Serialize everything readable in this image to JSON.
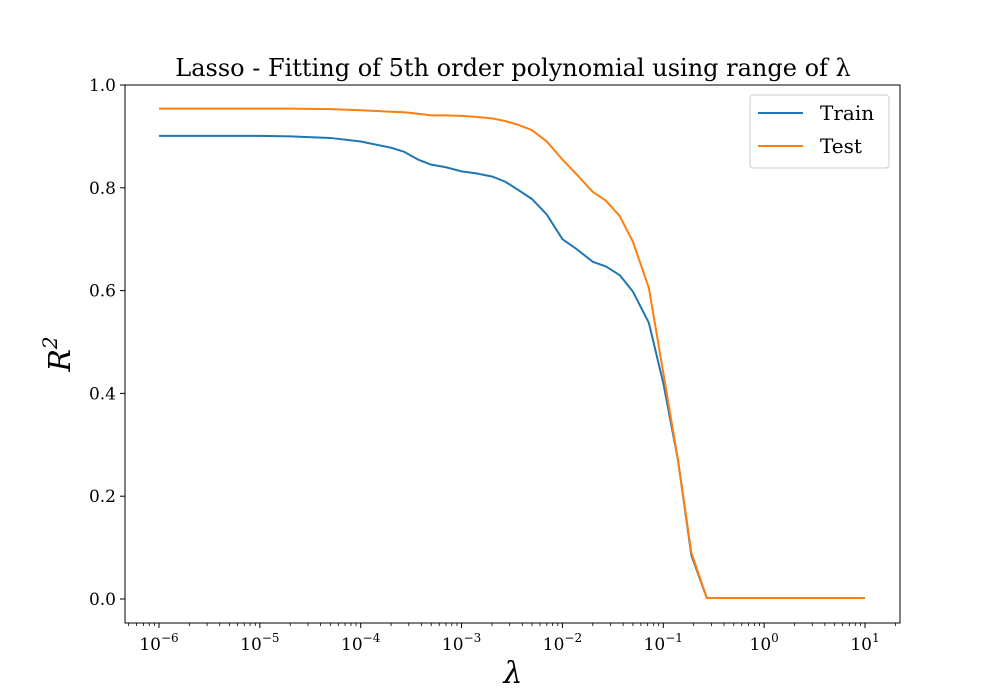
{
  "chart_data": {
    "type": "line",
    "title": "Lasso - Fitting of 5th order polynomial using range of λ",
    "xlabel": "λ",
    "ylabel_base": "R",
    "ylabel_sup": "2",
    "x_scale": "log",
    "xlim": [
      1e-06,
      10
    ],
    "ylim": [
      0.0,
      1.0
    ],
    "grid": false,
    "legend_placement": "top-right",
    "x_ticks": [
      {
        "value": 1e-06,
        "base": "10",
        "exp": "−6"
      },
      {
        "value": 1e-05,
        "base": "10",
        "exp": "−5"
      },
      {
        "value": 0.0001,
        "base": "10",
        "exp": "−4"
      },
      {
        "value": 0.001,
        "base": "10",
        "exp": "−3"
      },
      {
        "value": 0.01,
        "base": "10",
        "exp": "−2"
      },
      {
        "value": 0.1,
        "base": "10",
        "exp": "−1"
      },
      {
        "value": 1,
        "base": "10",
        "exp": "0"
      },
      {
        "value": 10,
        "base": "10",
        "exp": "1"
      }
    ],
    "y_ticks": [
      "0.0",
      "0.2",
      "0.4",
      "0.6",
      "0.8",
      "1.0"
    ],
    "series": [
      {
        "name": "Train",
        "color": "#1f77b4",
        "x": [
          1e-06,
          2e-06,
          5e-06,
          1e-05,
          2e-05,
          5e-05,
          0.0001,
          0.0002,
          0.00027,
          0.00037,
          0.0005,
          0.0007,
          0.001,
          0.0014,
          0.002,
          0.0027,
          0.0037,
          0.005,
          0.007,
          0.01,
          0.014,
          0.02,
          0.027,
          0.037,
          0.05,
          0.072,
          0.1,
          0.14,
          0.19,
          0.27,
          0.5,
          1,
          2,
          5,
          10
        ],
        "y": [
          0.901,
          0.901,
          0.901,
          0.901,
          0.9,
          0.897,
          0.89,
          0.878,
          0.87,
          0.855,
          0.845,
          0.84,
          0.832,
          0.828,
          0.822,
          0.812,
          0.795,
          0.778,
          0.748,
          0.7,
          0.68,
          0.656,
          0.647,
          0.63,
          0.598,
          0.537,
          0.42,
          0.27,
          0.085,
          0.002,
          0.002,
          0.002,
          0.002,
          0.002,
          0.002
        ]
      },
      {
        "name": "Test",
        "color": "#ff7f0e",
        "x": [
          1e-06,
          2e-06,
          5e-06,
          1e-05,
          2e-05,
          5e-05,
          0.0001,
          0.0002,
          0.00027,
          0.00037,
          0.0005,
          0.0007,
          0.001,
          0.0014,
          0.002,
          0.0027,
          0.0037,
          0.005,
          0.007,
          0.01,
          0.014,
          0.02,
          0.027,
          0.037,
          0.05,
          0.072,
          0.1,
          0.14,
          0.19,
          0.27,
          0.5,
          1,
          2,
          5,
          10
        ],
        "y": [
          0.954,
          0.954,
          0.954,
          0.954,
          0.954,
          0.953,
          0.951,
          0.948,
          0.947,
          0.944,
          0.941,
          0.941,
          0.94,
          0.938,
          0.935,
          0.93,
          0.922,
          0.912,
          0.89,
          0.855,
          0.825,
          0.792,
          0.775,
          0.745,
          0.695,
          0.605,
          0.44,
          0.27,
          0.09,
          0.002,
          0.002,
          0.002,
          0.002,
          0.002,
          0.002
        ]
      }
    ]
  }
}
